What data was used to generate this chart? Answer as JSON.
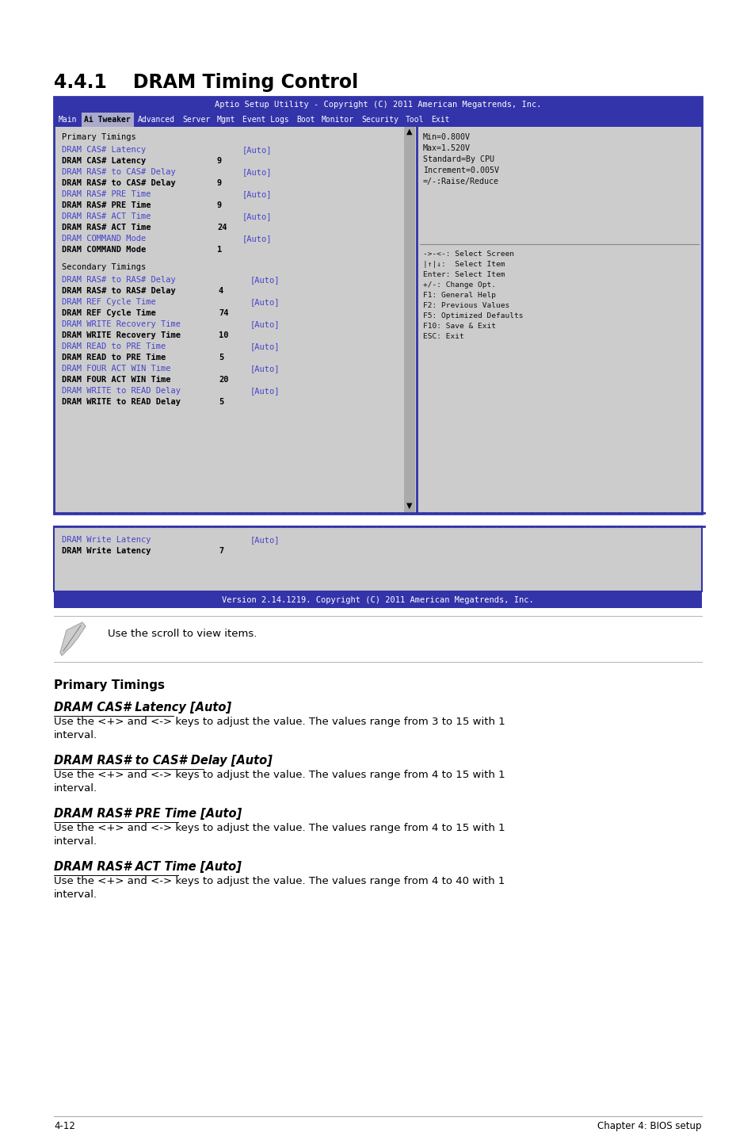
{
  "title": "4.4.1    DRAM Timing Control",
  "header_bar": "Aptio Setup Utility - Copyright (C) 2011 American Megatrends, Inc.",
  "nav_items": [
    "Main",
    "Ai Tweaker",
    "Advanced",
    "Server",
    "Mgmt",
    "Event Logs",
    "Boot",
    "Monitor",
    "Security",
    "Tool",
    "Exit"
  ],
  "nav_selected": "Ai Tweaker",
  "right_panel_top": [
    "Min=0.800V",
    "Max=1.520V",
    "Standard=By CPU",
    "Increment=0.005V",
    "=/-:Raise/Reduce"
  ],
  "right_panel_bottom": [
    "->-<-: Select Screen",
    "|^|v:  Select Item",
    "Enter: Select Item",
    "+/-: Change Opt.",
    "F1: General Help",
    "F2: Previous Values",
    "F5: Optimized Defaults",
    "F10: Save & Exit",
    "ESC: Exit"
  ],
  "primary_section_label": "Primary Timings",
  "primary_rows": [
    {
      "label": "DRAM CAS# Latency",
      "value": null,
      "tag": "[Auto]",
      "blue": true
    },
    {
      "label": "DRAM CAS# Latency",
      "value": "9",
      "tag": null,
      "blue": false
    },
    {
      "label": "DRAM RAS# to CAS# Delay",
      "value": null,
      "tag": "[Auto]",
      "blue": true
    },
    {
      "label": "DRAM RAS# to CAS# Delay",
      "value": "9",
      "tag": null,
      "blue": false
    },
    {
      "label": "DRAM RAS# PRE Time",
      "value": null,
      "tag": "[Auto]",
      "blue": true
    },
    {
      "label": "DRAM RAS# PRE Time",
      "value": "9",
      "tag": null,
      "blue": false
    },
    {
      "label": "DRAM RAS# ACT Time",
      "value": null,
      "tag": "[Auto]",
      "blue": true
    },
    {
      "label": "DRAM RAS# ACT Time",
      "value": "24",
      "tag": null,
      "blue": false
    },
    {
      "label": "DRAM COMMAND Mode",
      "value": null,
      "tag": "[Auto]",
      "blue": true
    },
    {
      "label": "DRAM COMMAND Mode",
      "value": "1",
      "tag": null,
      "blue": false
    }
  ],
  "secondary_section_label": "Secondary Timings",
  "secondary_rows": [
    {
      "label": "DRAM RAS# to RAS# Delay",
      "value": null,
      "tag": "[Auto]",
      "blue": true
    },
    {
      "label": "DRAM RAS# to RAS# Delay",
      "value": "4",
      "tag": null,
      "blue": false
    },
    {
      "label": "DRAM REF Cycle Time",
      "value": null,
      "tag": "[Auto]",
      "blue": true
    },
    {
      "label": "DRAM REF Cycle Time",
      "value": "74",
      "tag": null,
      "blue": false
    },
    {
      "label": "DRAM WRITE Recovery Time",
      "value": null,
      "tag": "[Auto]",
      "blue": true
    },
    {
      "label": "DRAM WRITE Recovery Time",
      "value": "10",
      "tag": null,
      "blue": false
    },
    {
      "label": "DRAM READ to PRE Time",
      "value": null,
      "tag": "[Auto]",
      "blue": true
    },
    {
      "label": "DRAM READ to PRE Time",
      "value": "5",
      "tag": null,
      "blue": false
    },
    {
      "label": "DRAM FOUR ACT WIN Time",
      "value": null,
      "tag": "[Auto]",
      "blue": true
    },
    {
      "label": "DRAM FOUR ACT WIN Time",
      "value": "20",
      "tag": null,
      "blue": false
    },
    {
      "label": "DRAM WRITE to READ Delay",
      "value": null,
      "tag": "[Auto]",
      "blue": true
    },
    {
      "label": "DRAM WRITE to READ Delay",
      "value": "5",
      "tag": null,
      "blue": false
    }
  ],
  "bottom_rows": [
    {
      "label": "DRAM Write Latency",
      "value": null,
      "tag": "[Auto]",
      "blue": true
    },
    {
      "label": "DRAM Write Latency",
      "value": "7",
      "tag": null,
      "blue": false
    }
  ],
  "version_bar": "Version 2.14.1219. Copyright (C) 2011 American Megatrends, Inc.",
  "note_text": "Use the scroll to view items.",
  "bold_section": "Primary Timings",
  "descriptions": [
    {
      "title": "DRAM CAS# Latency [Auto]",
      "text": "Use the <+> and <-> keys to adjust the value. The values range from 3 to 15 with 1\ninterval."
    },
    {
      "title": "DRAM RAS# to CAS# Delay [Auto]",
      "text": "Use the <+> and <-> keys to adjust the value. The values range from 4 to 15 with 1\ninterval."
    },
    {
      "title": "DRAM RAS# PRE Time [Auto]",
      "text": "Use the <+> and <-> keys to adjust the value. The values range from 4 to 15 with 1\ninterval."
    },
    {
      "title": "DRAM RAS# ACT Time [Auto]",
      "text": "Use the <+> and <-> keys to adjust the value. The values range from 4 to 40 with 1\ninterval."
    }
  ],
  "footer_left": "4-12",
  "footer_right": "Chapter 4: BIOS setup",
  "bg_color": "#ffffff",
  "bios_bg": "#3333aa",
  "bios_panel_bg": "#cccccc",
  "bios_text_blue": "#4444cc",
  "bios_text_dark": "#111111",
  "scrollbar_color": "#3333aa"
}
